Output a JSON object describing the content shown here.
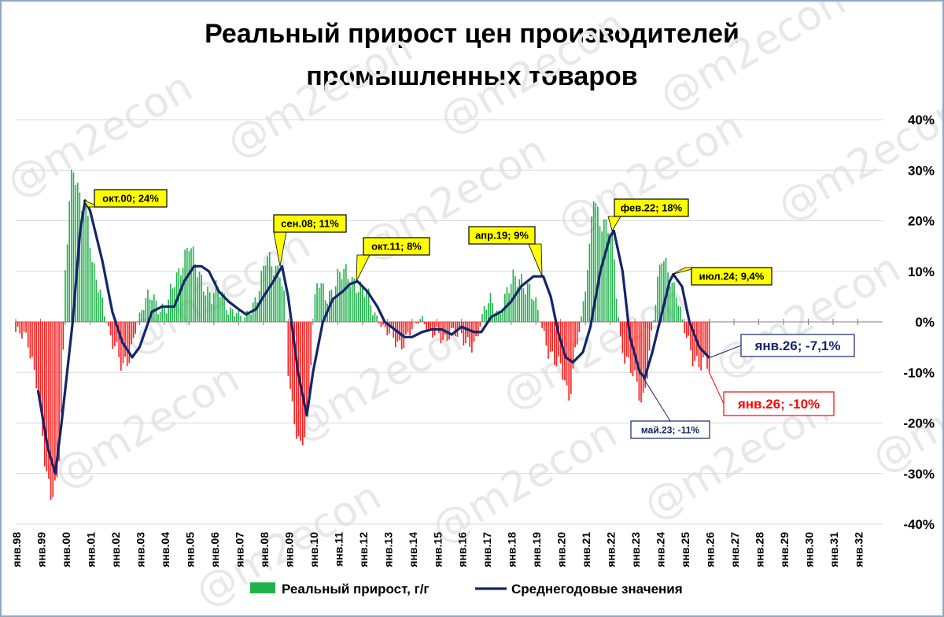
{
  "title_line1": "Реальный прирост цен производителей",
  "title_line2": "промышленных товаров",
  "watermark": "@m2econ",
  "colors": {
    "positive_bar": "#22b24c",
    "negative_bar": "#ff1a1a",
    "avg_line": "#14256b",
    "callout_yellow": "#ffff00",
    "callout_red": "#ff0000",
    "callout_navy": "#14256b"
  },
  "chart_data": {
    "type": "bar",
    "title": "Реальный прирост цен производителей промышленных товаров",
    "xlabel": "",
    "ylabel": "",
    "ylim": [
      -40,
      40
    ],
    "y_ticks": [
      "40%",
      "30%",
      "20%",
      "10%",
      "0%",
      "-10%",
      "-20%",
      "-30%",
      "-40%"
    ],
    "y_tick_values": [
      40,
      30,
      20,
      10,
      0,
      -10,
      -20,
      -30,
      -40
    ],
    "x_tick_labels": [
      "янв.98",
      "янв.99",
      "янв.00",
      "янв.01",
      "янв.02",
      "янв.03",
      "янв.04",
      "янв.05",
      "янв.06",
      "янв.07",
      "янв.08",
      "янв.09",
      "янв.10",
      "янв.11",
      "янв.12",
      "янв.13",
      "янв.14",
      "янв.15",
      "янв.16",
      "янв.17",
      "янв.18",
      "янв.19",
      "янв.20",
      "янв.21",
      "янв.22",
      "янв.23",
      "янв.24",
      "янв.25",
      "янв.26",
      "янв.27",
      "янв.28",
      "янв.29",
      "янв.30",
      "янв.31",
      "янв.32"
    ],
    "legend_position": "bottom",
    "grid": true,
    "series": [
      {
        "name": "Реальный прирост, г/г",
        "type": "bar",
        "anchors": [
          [
            1998.0,
            -2
          ],
          [
            1998.5,
            -4
          ],
          [
            1998.9,
            -12
          ],
          [
            1999.2,
            -30
          ],
          [
            1999.4,
            -35
          ],
          [
            1999.7,
            -30
          ],
          [
            1999.9,
            -10
          ],
          [
            2000.0,
            10
          ],
          [
            2000.2,
            25
          ],
          [
            2000.3,
            30
          ],
          [
            2000.6,
            25
          ],
          [
            2000.9,
            22
          ],
          [
            2001.1,
            10
          ],
          [
            2001.5,
            4
          ],
          [
            2001.8,
            -2
          ],
          [
            2002.0,
            -5
          ],
          [
            2002.3,
            -10
          ],
          [
            2002.6,
            -6
          ],
          [
            2002.9,
            0
          ],
          [
            2003.2,
            3
          ],
          [
            2003.5,
            6
          ],
          [
            2003.8,
            3
          ],
          [
            2004.1,
            2
          ],
          [
            2004.4,
            8
          ],
          [
            2004.7,
            12
          ],
          [
            2005.0,
            15
          ],
          [
            2005.3,
            10
          ],
          [
            2005.6,
            8
          ],
          [
            2005.9,
            5
          ],
          [
            2006.2,
            6
          ],
          [
            2006.6,
            3
          ],
          [
            2006.9,
            2
          ],
          [
            2007.2,
            0
          ],
          [
            2007.6,
            4
          ],
          [
            2007.9,
            8
          ],
          [
            2008.1,
            12
          ],
          [
            2008.4,
            11
          ],
          [
            2008.7,
            11
          ],
          [
            2008.9,
            2
          ],
          [
            2009.0,
            -10
          ],
          [
            2009.2,
            -20
          ],
          [
            2009.5,
            -24
          ],
          [
            2009.8,
            -18
          ],
          [
            2010.0,
            0
          ],
          [
            2010.2,
            8
          ],
          [
            2010.5,
            6
          ],
          [
            2010.8,
            6
          ],
          [
            2011.0,
            8
          ],
          [
            2011.3,
            10
          ],
          [
            2011.6,
            9
          ],
          [
            2011.9,
            6
          ],
          [
            2012.2,
            5
          ],
          [
            2012.5,
            2
          ],
          [
            2012.8,
            -1
          ],
          [
            2013.1,
            -3
          ],
          [
            2013.5,
            -4
          ],
          [
            2013.8,
            -3
          ],
          [
            2014.1,
            -1
          ],
          [
            2014.4,
            1
          ],
          [
            2014.7,
            -2
          ],
          [
            2015.0,
            -3
          ],
          [
            2015.3,
            -4
          ],
          [
            2015.6,
            -1
          ],
          [
            2015.9,
            -3
          ],
          [
            2016.2,
            -5
          ],
          [
            2016.6,
            -3
          ],
          [
            2016.9,
            2
          ],
          [
            2017.2,
            4
          ],
          [
            2017.5,
            2
          ],
          [
            2017.8,
            5
          ],
          [
            2018.1,
            8
          ],
          [
            2018.4,
            9
          ],
          [
            2018.7,
            7
          ],
          [
            2019.0,
            3
          ],
          [
            2019.3,
            -2
          ],
          [
            2019.6,
            -6
          ],
          [
            2019.9,
            -9
          ],
          [
            2020.2,
            -12
          ],
          [
            2020.3,
            -16
          ],
          [
            2020.6,
            -5
          ],
          [
            2020.9,
            2
          ],
          [
            2021.2,
            15
          ],
          [
            2021.3,
            27
          ],
          [
            2021.6,
            20
          ],
          [
            2021.9,
            18
          ],
          [
            2022.1,
            16
          ],
          [
            2022.4,
            -3
          ],
          [
            2022.7,
            -8
          ],
          [
            2023.0,
            -12
          ],
          [
            2023.3,
            -16
          ],
          [
            2023.6,
            -5
          ],
          [
            2023.9,
            6
          ],
          [
            2024.1,
            13
          ],
          [
            2024.4,
            10
          ],
          [
            2024.7,
            5
          ],
          [
            2025.0,
            -2
          ],
          [
            2025.3,
            -6
          ],
          [
            2025.6,
            -8
          ],
          [
            2025.9,
            -9
          ],
          [
            2026.0,
            -10
          ]
        ]
      },
      {
        "name": "Среднегодовые значения",
        "type": "line",
        "points": [
          [
            1998.9,
            -13.5
          ],
          [
            1999.3,
            -25
          ],
          [
            1999.6,
            -30
          ],
          [
            1999.85,
            -20
          ],
          [
            2000.3,
            0
          ],
          [
            2000.6,
            18
          ],
          [
            2000.8,
            24
          ],
          [
            2001.0,
            22
          ],
          [
            2001.5,
            12
          ],
          [
            2001.9,
            2
          ],
          [
            2002.3,
            -4
          ],
          [
            2002.7,
            -7
          ],
          [
            2003.0,
            -5
          ],
          [
            2003.5,
            2
          ],
          [
            2003.9,
            3
          ],
          [
            2004.4,
            3
          ],
          [
            2004.8,
            8
          ],
          [
            2005.2,
            11
          ],
          [
            2005.5,
            11
          ],
          [
            2005.8,
            10
          ],
          [
            2006.2,
            6
          ],
          [
            2006.6,
            4
          ],
          [
            2007.0,
            2.5
          ],
          [
            2007.3,
            1.5
          ],
          [
            2007.7,
            2.5
          ],
          [
            2008.0,
            5
          ],
          [
            2008.4,
            8
          ],
          [
            2008.75,
            11
          ],
          [
            2009.0,
            5
          ],
          [
            2009.4,
            -10
          ],
          [
            2009.75,
            -18.5
          ],
          [
            2010.0,
            -10
          ],
          [
            2010.4,
            0
          ],
          [
            2010.8,
            4.5
          ],
          [
            2011.2,
            6
          ],
          [
            2011.5,
            7.5
          ],
          [
            2011.8,
            8
          ],
          [
            2012.2,
            6
          ],
          [
            2012.6,
            3
          ],
          [
            2012.9,
            0
          ],
          [
            2013.3,
            -1.5
          ],
          [
            2013.7,
            -3
          ],
          [
            2014.0,
            -3
          ],
          [
            2014.4,
            -2
          ],
          [
            2014.8,
            -1.5
          ],
          [
            2015.2,
            -1.5
          ],
          [
            2015.6,
            -2.5
          ],
          [
            2016.0,
            -1
          ],
          [
            2016.5,
            -2
          ],
          [
            2016.8,
            -2
          ],
          [
            2017.2,
            1
          ],
          [
            2017.6,
            2
          ],
          [
            2018.0,
            4
          ],
          [
            2018.4,
            7
          ],
          [
            2018.9,
            9
          ],
          [
            2019.3,
            9
          ],
          [
            2019.6,
            5
          ],
          [
            2019.9,
            -2
          ],
          [
            2020.2,
            -7
          ],
          [
            2020.5,
            -8
          ],
          [
            2020.9,
            -6
          ],
          [
            2021.2,
            -1
          ],
          [
            2021.6,
            10
          ],
          [
            2022.0,
            17
          ],
          [
            2022.15,
            18
          ],
          [
            2022.5,
            10
          ],
          [
            2022.8,
            -3
          ],
          [
            2023.2,
            -10
          ],
          [
            2023.4,
            -11
          ],
          [
            2023.7,
            -6
          ],
          [
            2024.1,
            2
          ],
          [
            2024.4,
            8
          ],
          [
            2024.55,
            9.4
          ],
          [
            2024.9,
            7
          ],
          [
            2025.2,
            0
          ],
          [
            2025.6,
            -5
          ],
          [
            2026.0,
            -7.1
          ]
        ]
      }
    ],
    "annotations": [
      {
        "label": "окт.00; 24%",
        "x": 2000.75,
        "y": 24,
        "style": "yellow"
      },
      {
        "label": "сен.08; 11%",
        "x": 2008.67,
        "y": 11,
        "style": "yellow"
      },
      {
        "label": "окт.11; 8%",
        "x": 2011.75,
        "y": 8,
        "style": "yellow"
      },
      {
        "label": "апр.19; 9%",
        "x": 2019.25,
        "y": 9,
        "style": "yellow"
      },
      {
        "label": "фев.22; 18%",
        "x": 2022.08,
        "y": 18,
        "style": "yellow"
      },
      {
        "label": "июл.24; 9,4%",
        "x": 2024.5,
        "y": 9.4,
        "style": "yellow"
      },
      {
        "label": "янв.26; -7,1%",
        "x": 2026.0,
        "y": -7.1,
        "style": "navy"
      },
      {
        "label": "янв.26; -10%",
        "x": 2026.0,
        "y": -10,
        "style": "red"
      },
      {
        "label": "май.23; -11%",
        "x": 2023.33,
        "y": -11,
        "style": "navy-small"
      }
    ]
  }
}
